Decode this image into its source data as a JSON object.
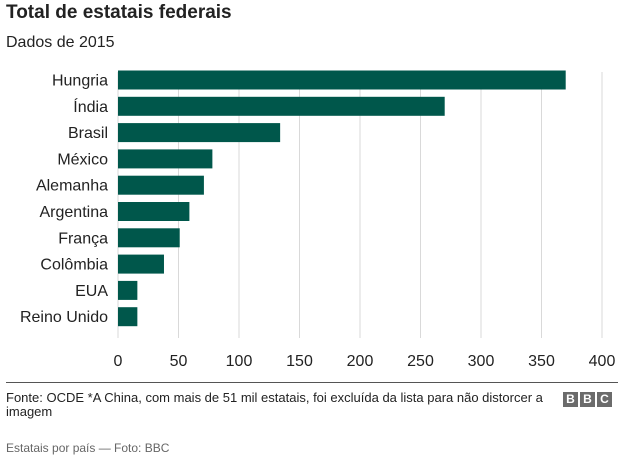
{
  "header": {
    "title": "Total de estatais federais",
    "subtitle": "Dados de 2015"
  },
  "footer": {
    "source": "Fonte: OCDE *A China, com mais de 51 mil estatais, foi excluída da lista para não distorcer a imagem",
    "logo_letters": [
      "B",
      "B",
      "C"
    ],
    "caption": "Estatais por país — Foto: BBC"
  },
  "colors": {
    "bar": "#00574b",
    "grid": "#d9d9d9",
    "text": "#222222"
  },
  "chart_data": {
    "type": "bar",
    "orientation": "horizontal",
    "title": "Total de estatais federais",
    "subtitle": "Dados de 2015",
    "categories": [
      "Hungria",
      "Índia",
      "Brasil",
      "México",
      "Alemanha",
      "Argentina",
      "França",
      "Colômbia",
      "EUA",
      "Reino Unido"
    ],
    "values": [
      370,
      270,
      134,
      78,
      71,
      59,
      51,
      38,
      16,
      16
    ],
    "xlim": [
      0,
      400
    ],
    "xticks": [
      0,
      50,
      100,
      150,
      200,
      250,
      300,
      350,
      400
    ],
    "grid": true
  }
}
